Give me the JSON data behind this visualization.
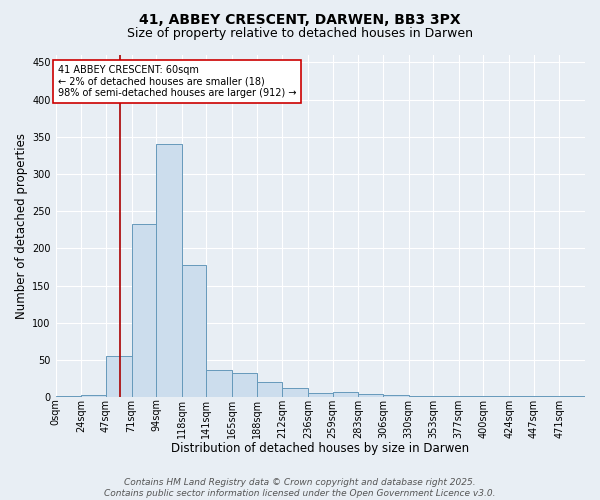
{
  "title1": "41, ABBEY CRESCENT, DARWEN, BB3 3PX",
  "title2": "Size of property relative to detached houses in Darwen",
  "xlabel": "Distribution of detached houses by size in Darwen",
  "ylabel": "Number of detached properties",
  "bins": [
    0,
    24,
    47,
    71,
    94,
    118,
    141,
    165,
    188,
    212,
    236,
    259,
    283,
    306,
    330,
    353,
    377,
    400,
    424,
    447,
    471,
    495
  ],
  "counts": [
    2,
    3,
    55,
    233,
    340,
    178,
    37,
    33,
    20,
    12,
    6,
    7,
    4,
    3,
    2,
    1,
    1,
    1,
    1,
    1,
    2
  ],
  "bar_color": "#ccdded",
  "bar_edge_color": "#6699bb",
  "vline_x": 60,
  "vline_color": "#aa0000",
  "annotation_text": "41 ABBEY CRESCENT: 60sqm\n← 2% of detached houses are smaller (18)\n98% of semi-detached houses are larger (912) →",
  "annotation_box_facecolor": "#ffffff",
  "annotation_box_edgecolor": "#cc0000",
  "ylim": [
    0,
    460
  ],
  "yticks": [
    0,
    50,
    100,
    150,
    200,
    250,
    300,
    350,
    400,
    450
  ],
  "bin_labels": [
    "0sqm",
    "24sqm",
    "47sqm",
    "71sqm",
    "94sqm",
    "118sqm",
    "141sqm",
    "165sqm",
    "188sqm",
    "212sqm",
    "236sqm",
    "259sqm",
    "283sqm",
    "306sqm",
    "330sqm",
    "353sqm",
    "377sqm",
    "400sqm",
    "424sqm",
    "447sqm",
    "471sqm"
  ],
  "footer1": "Contains HM Land Registry data © Crown copyright and database right 2025.",
  "footer2": "Contains public sector information licensed under the Open Government Licence v3.0.",
  "fig_bg": "#e8eef4",
  "plot_bg": "#e8eef4",
  "grid_color": "#ffffff",
  "title_fontsize": 10,
  "subtitle_fontsize": 9,
  "axis_label_fontsize": 8.5,
  "tick_fontsize": 7,
  "annotation_fontsize": 7,
  "footer_fontsize": 6.5
}
